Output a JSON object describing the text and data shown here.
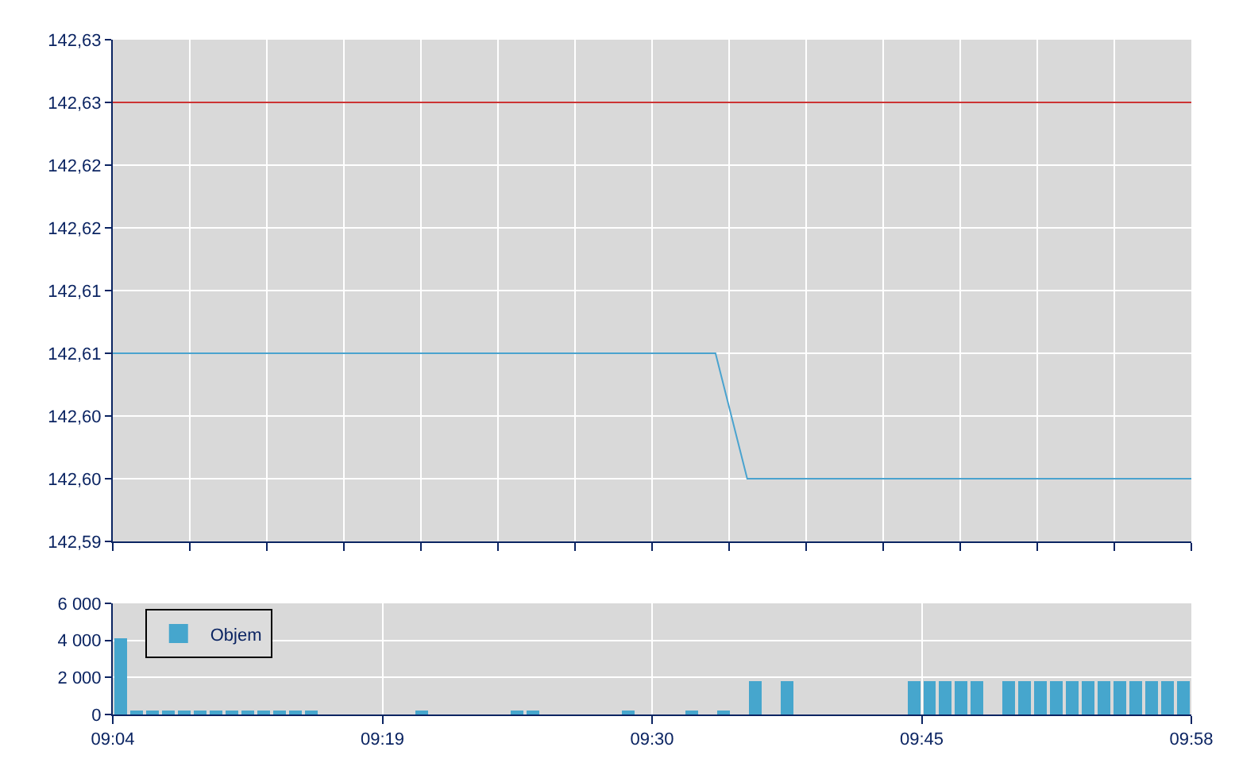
{
  "chart_data": [
    {
      "type": "line",
      "categories": [
        null,
        null,
        null,
        null,
        null,
        null,
        null,
        null,
        null,
        null,
        null,
        null,
        null,
        null,
        null,
        null,
        null,
        null,
        null,
        null,
        null,
        null,
        null,
        null,
        null,
        null,
        null,
        null,
        null,
        null,
        null,
        null,
        null,
        null,
        null,
        null,
        null,
        null,
        null,
        null,
        null,
        null,
        null,
        null,
        null,
        null,
        null,
        null,
        null,
        null,
        null,
        null,
        null,
        null,
        null,
        null,
        null,
        null,
        null,
        null,
        null,
        null,
        null,
        null,
        null,
        null,
        null,
        null,
        null
      ],
      "values": [
        142.605,
        142.605,
        142.605,
        142.605,
        142.605,
        142.605,
        142.605,
        142.605,
        142.605,
        142.605,
        142.605,
        142.605,
        142.605,
        142.605,
        142.605,
        142.605,
        142.605,
        142.605,
        142.605,
        142.605,
        142.605,
        142.605,
        142.605,
        142.605,
        142.605,
        142.605,
        142.605,
        142.605,
        142.605,
        142.605,
        142.605,
        142.605,
        142.605,
        142.605,
        142.605,
        142.605,
        142.605,
        142.605,
        142.605,
        142.6,
        142.595,
        142.595,
        142.595,
        142.595,
        142.595,
        142.595,
        142.595,
        142.595,
        142.595,
        142.595,
        142.595,
        142.595,
        142.595,
        142.595,
        142.595,
        142.595,
        142.595,
        142.595,
        142.595,
        142.595,
        142.595,
        142.595,
        142.595,
        142.595,
        142.595,
        142.595,
        142.595,
        142.595,
        142.595
      ],
      "color": "#4aa3cf",
      "ylim": [
        142.59,
        142.63
      ],
      "yticks": [
        {
          "value": 142.59,
          "label": "142,59"
        },
        {
          "value": 142.595,
          "label": "142,60"
        },
        {
          "value": 142.6,
          "label": "142,60"
        },
        {
          "value": 142.605,
          "label": "142,61"
        },
        {
          "value": 142.61,
          "label": "142,61"
        },
        {
          "value": 142.615,
          "label": "142,62"
        },
        {
          "value": 142.62,
          "label": "142,62"
        },
        {
          "value": 142.625,
          "label": "142,63"
        },
        {
          "value": 142.63,
          "label": "142,63"
        }
      ],
      "ref_lines": [
        {
          "axis": "y",
          "value": 142.625,
          "color": "#cc3333"
        }
      ],
      "grid": true,
      "tick_labels": "y"
    },
    {
      "type": "bar",
      "categories": [
        "09:04",
        null,
        null,
        null,
        null,
        null,
        null,
        null,
        null,
        null,
        null,
        null,
        null,
        null,
        null,
        null,
        null,
        "09:19",
        null,
        null,
        null,
        null,
        null,
        null,
        null,
        null,
        null,
        null,
        null,
        null,
        null,
        null,
        null,
        null,
        "09:30",
        null,
        null,
        null,
        null,
        null,
        null,
        null,
        null,
        null,
        null,
        null,
        null,
        null,
        null,
        null,
        null,
        "09:45",
        null,
        null,
        null,
        null,
        null,
        null,
        null,
        null,
        null,
        null,
        null,
        null,
        null,
        null,
        null,
        null,
        "09:58"
      ],
      "series": [
        {
          "name": "Objem",
          "color": "#46a6cd",
          "values": [
            4100,
            200,
            200,
            200,
            200,
            200,
            200,
            200,
            200,
            200,
            200,
            200,
            200,
            0,
            0,
            0,
            0,
            0,
            0,
            200,
            0,
            0,
            0,
            0,
            0,
            200,
            200,
            0,
            0,
            0,
            0,
            0,
            200,
            0,
            0,
            0,
            200,
            0,
            200,
            0,
            1800,
            0,
            1800,
            0,
            0,
            0,
            0,
            0,
            0,
            0,
            1800,
            1800,
            1800,
            1800,
            1800,
            0,
            1800,
            1800,
            1800,
            1800,
            1800,
            1800,
            1800,
            1800,
            1800,
            1800,
            1800,
            1800,
            null
          ]
        }
      ],
      "ylim": [
        0,
        6000
      ],
      "yticks": [
        0,
        {
          "value": 2000,
          "label": "2 000"
        },
        {
          "value": 4000,
          "label": "4 000"
        },
        {
          "value": 6000,
          "label": "6 000"
        }
      ],
      "grid": true,
      "legend": "top left"
    }
  ]
}
